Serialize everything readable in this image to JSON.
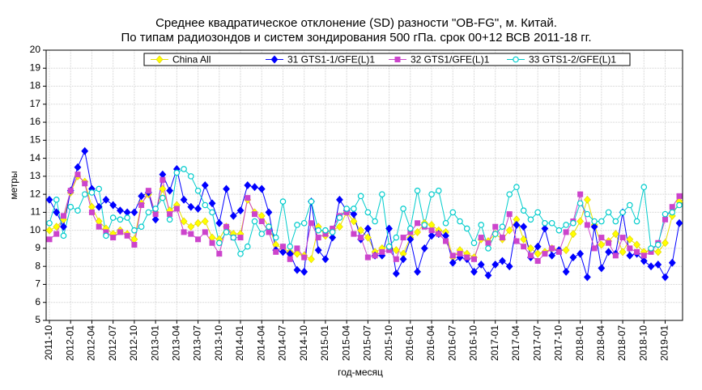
{
  "chart_data": {
    "type": "line",
    "title": "Среднее квадратическое отклонение (SD) разности \"OB-FG\", м. Китай.",
    "subtitle": "По типам радиозондов и систем зондирования 500 гПа. срок 00+12 ВСВ 2011-18 гг.",
    "x_label": "год-месяц",
    "y_label": "метры",
    "categories": [
      "2011-10",
      null,
      null,
      "2012-01",
      null,
      null,
      "2012-04",
      null,
      null,
      "2012-07",
      null,
      null,
      "2012-10",
      null,
      null,
      "2013-01",
      null,
      null,
      "2013-04",
      null,
      null,
      "2013-07",
      null,
      null,
      "2013-10",
      null,
      null,
      "2014-01",
      null,
      null,
      "2014-04",
      null,
      null,
      "2014-07",
      null,
      null,
      "2014-10",
      null,
      null,
      "2015-01",
      null,
      null,
      "2015-04",
      null,
      null,
      "2015-07",
      null,
      null,
      "2015-10",
      null,
      null,
      "2016-01",
      null,
      null,
      "2016-04",
      null,
      null,
      "2016-07",
      null,
      null,
      "2016-10",
      null,
      null,
      "2017-01",
      null,
      null,
      "2017-04",
      null,
      null,
      "2017-07",
      null,
      null,
      "2017-10",
      null,
      null,
      "2018-01",
      null,
      null,
      "2018-04",
      null,
      null,
      "2018-07",
      null,
      null,
      "2018-10",
      null,
      null,
      "2019-01",
      null,
      null
    ],
    "series": [
      {
        "name": "China All",
        "color": "#ffff00",
        "marker": "diamond",
        "values": [
          10.0,
          10.2,
          10.6,
          12.1,
          13.0,
          12.7,
          11.3,
          10.5,
          10.1,
          9.8,
          10.0,
          9.8,
          9.5,
          11.5,
          12.0,
          11.0,
          12.3,
          11.1,
          11.4,
          10.5,
          10.2,
          10.4,
          10.5,
          9.6,
          9.5,
          10.2,
          9.8,
          9.8,
          11.7,
          11.0,
          10.8,
          10.2,
          9.2,
          9.0,
          8.8,
          8.7,
          8.6,
          8.4,
          10.2,
          9.7,
          10.0,
          10.2,
          11.0,
          10.5,
          10.0,
          9.6,
          8.8,
          9.0,
          9.1,
          8.9,
          8.7,
          9.6,
          9.9,
          10.4,
          10.3,
          10.0,
          9.9,
          8.5,
          8.9,
          8.7,
          8.5,
          9.5,
          9.4,
          9.8,
          9.5,
          10.0,
          10.6,
          9.5,
          9.0,
          8.7,
          8.8,
          9.0,
          8.9,
          8.9,
          9.8,
          10.5,
          11.7,
          10.3,
          9.2,
          9.4,
          9.8,
          8.8,
          9.5,
          9.2,
          8.8,
          8.9,
          8.8,
          9.3,
          10.8,
          11.6
        ]
      },
      {
        "name": "31 GTS1-1/GFE(L)1",
        "color": "#0000ff",
        "marker": "diamond",
        "values": [
          11.7,
          11.0,
          10.2,
          12.2,
          13.5,
          14.4,
          12.3,
          11.3,
          11.7,
          11.4,
          11.1,
          11.0,
          11.0,
          11.9,
          12.1,
          10.6,
          13.1,
          12.2,
          13.4,
          11.7,
          11.3,
          11.2,
          12.5,
          11.5,
          10.4,
          12.3,
          10.8,
          11.1,
          12.5,
          12.4,
          12.3,
          11.0,
          8.9,
          8.8,
          8.7,
          7.8,
          7.7,
          11.6,
          8.9,
          8.4,
          9.6,
          11.7,
          11.1,
          10.9,
          9.5,
          10.1,
          8.6,
          8.6,
          10.1,
          7.6,
          8.4,
          9.5,
          7.7,
          9.0,
          9.7,
          9.8,
          9.7,
          8.2,
          8.5,
          8.4,
          7.7,
          8.1,
          7.5,
          8.1,
          8.3,
          8.0,
          10.3,
          10.2,
          8.5,
          9.1,
          10.1,
          8.6,
          8.9,
          7.7,
          8.5,
          8.7,
          7.4,
          10.2,
          7.9,
          8.8,
          8.7,
          11.0,
          8.6,
          8.7,
          8.3,
          8.0,
          8.1,
          7.4,
          8.2,
          10.4
        ]
      },
      {
        "name": "32 GTS1/GFE(L)1",
        "color": "#cc44cc",
        "marker": "square",
        "values": [
          9.5,
          9.8,
          10.8,
          12.2,
          13.1,
          12.6,
          11.0,
          10.2,
          9.9,
          9.6,
          9.9,
          9.7,
          9.2,
          11.4,
          12.2,
          10.9,
          12.8,
          10.9,
          11.2,
          9.9,
          9.8,
          9.5,
          9.9,
          9.3,
          8.7,
          10.2,
          9.6,
          9.6,
          11.8,
          10.9,
          10.5,
          9.9,
          8.8,
          9.1,
          8.4,
          9.0,
          8.5,
          10.4,
          9.6,
          9.8,
          10.1,
          10.8,
          11.0,
          9.8,
          9.6,
          8.5,
          8.6,
          8.8,
          8.9,
          8.4,
          9.6,
          9.9,
          10.4,
          10.2,
          10.0,
          9.8,
          9.4,
          8.6,
          8.7,
          8.5,
          8.4,
          9.6,
          9.3,
          10.2,
          9.6,
          10.9,
          9.4,
          9.1,
          8.6,
          8.3,
          8.7,
          9.0,
          8.8,
          9.9,
          10.5,
          12.0,
          10.3,
          9.0,
          9.6,
          9.3,
          8.6,
          9.6,
          9.0,
          8.8,
          8.6,
          8.8,
          9.3,
          10.6,
          11.3,
          11.9
        ]
      },
      {
        "name": "33 GTS1-2/GFE(L)1",
        "color": "#00cccc",
        "marker": "circle",
        "values": [
          10.4,
          11.7,
          9.7,
          11.3,
          11.1,
          12.0,
          12.1,
          12.3,
          9.7,
          10.7,
          10.6,
          10.7,
          10.0,
          10.2,
          11.0,
          11.2,
          11.8,
          10.6,
          13.2,
          13.4,
          13.0,
          12.2,
          11.4,
          11.0,
          9.3,
          9.9,
          9.6,
          8.7,
          9.1,
          10.5,
          9.8,
          10.2,
          9.6,
          11.6,
          9.1,
          10.3,
          10.4,
          11.6,
          10.0,
          10.0,
          9.9,
          10.7,
          11.2,
          11.2,
          11.9,
          11.0,
          10.5,
          12.0,
          9.1,
          9.6,
          11.2,
          10.1,
          12.2,
          10.3,
          12.0,
          12.2,
          10.4,
          11.0,
          10.5,
          10.1,
          9.3,
          10.3,
          9.0,
          9.8,
          10.2,
          12.0,
          12.4,
          11.1,
          10.6,
          11.0,
          10.4,
          10.4,
          10.0,
          10.3,
          10.4,
          11.5,
          10.9,
          10.5,
          10.5,
          11.0,
          10.5,
          11.0,
          11.4,
          10.5,
          12.4,
          9.0,
          9.2,
          10.9,
          11.0,
          11.4
        ]
      }
    ],
    "ylim": [
      5,
      20
    ],
    "yticks": [
      5,
      6,
      7,
      8,
      9,
      10,
      11,
      12,
      13,
      14,
      15,
      16,
      17,
      18,
      19,
      20
    ],
    "grid": true,
    "legend": "top"
  }
}
